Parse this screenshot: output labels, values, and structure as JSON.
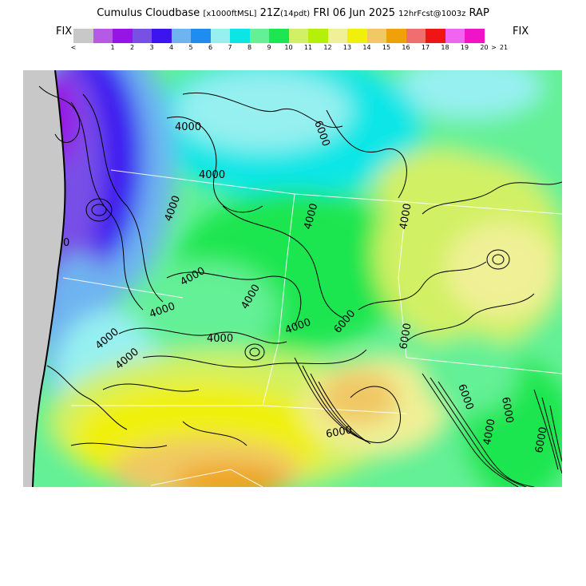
{
  "title": {
    "product": "Cumulus Cloudbase",
    "units": "[x1000ftMSL]",
    "valid": "21Z",
    "hour": "(14pdt)",
    "date": "FRI 06 Jun 2025",
    "forecast": "12hrFcst@1003z",
    "model": "RAP"
  },
  "legend": {
    "fix_left": "FIX",
    "fix_right": "FIX",
    "colors": [
      "#c8c8c8",
      "#b45ae6",
      "#9614e6",
      "#7850e6",
      "#3c14f0",
      "#6eb4f0",
      "#1e8cf0",
      "#96f0f0",
      "#0ae6e6",
      "#64f096",
      "#1ee650",
      "#d2f064",
      "#b4f00a",
      "#f0f096",
      "#f0f00a",
      "#f0c864",
      "#f0a00a",
      "#f06e6e",
      "#f01414",
      "#f064f0",
      "#f014c8"
    ],
    "tick_labels": [
      "<",
      "1",
      "2",
      "3",
      "4",
      "5",
      "6",
      "7",
      "8",
      "9",
      "10",
      "11",
      "12",
      "13",
      "14",
      "15",
      "16",
      "17",
      "18",
      "19",
      "20",
      "21",
      ">"
    ]
  },
  "map": {
    "contour_labels": [
      "4000",
      "4000",
      "4000",
      "4000",
      "4000",
      "4000",
      "4000",
      "4000",
      "4000",
      "4000",
      "4000",
      "4000",
      "6000",
      "6000",
      "6000",
      "6000",
      "6000",
      "6000",
      "4000",
      "6000",
      "0"
    ]
  }
}
